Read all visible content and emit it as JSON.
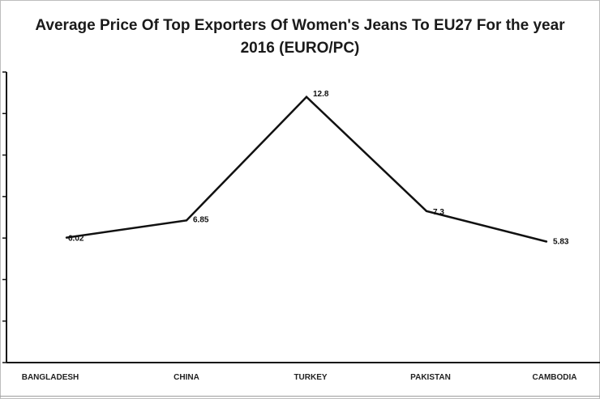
{
  "chart_data": {
    "type": "line",
    "title": "Average Price Of Top Exporters Of Women's Jeans To EU27 For the year 2016 (EURO/PC)",
    "categories": [
      "BANGLADESH",
      "CHINA",
      "TURKEY",
      "PAKISTAN",
      "CAMBODIA"
    ],
    "series": [
      {
        "values": [
          6.02,
          6.85,
          12.8,
          7.3,
          5.83
        ],
        "data_labels": [
          "6.02",
          "6.85",
          "12.8",
          "7.3",
          "5.83"
        ],
        "color": "#111111"
      }
    ],
    "ylim": [
      0,
      14
    ],
    "ytick_step": 2,
    "grid": false,
    "legend": false
  }
}
